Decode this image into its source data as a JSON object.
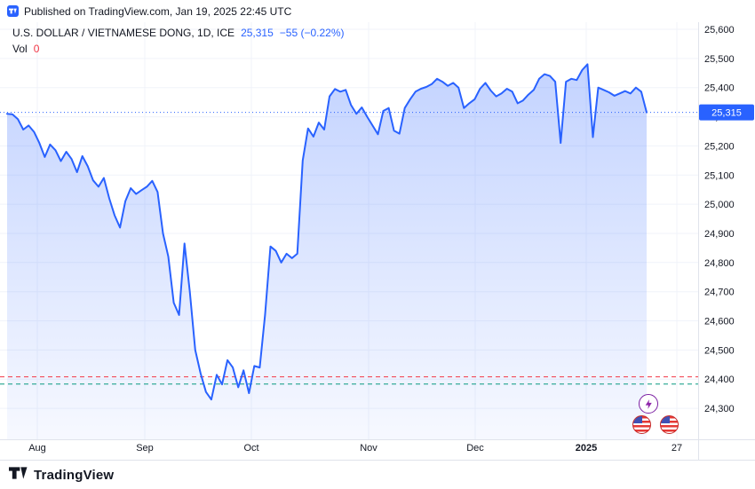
{
  "published_bar": {
    "text": "Published on TradingView.com, Jan 19, 2025 22:45 UTC"
  },
  "legend": {
    "title": "U.S. DOLLAR / VIETNAMESE DONG, 1D, ICE",
    "price": "25,315",
    "change": "−55 (−0.22%)",
    "vol_label": "Vol",
    "vol_value": "0"
  },
  "footer": {
    "brand": "TradingView"
  },
  "icons": {
    "header": "tradingview-logo-icon",
    "footer": "tradingview-logo-icon",
    "bottom_right": [
      "flash-icon",
      "us-flag-icon",
      "us-flag-icon"
    ]
  },
  "colors": {
    "accent_blue": "#2962FF",
    "negative_red": "#f23645",
    "positive_green": "#089981",
    "grid": "#f0f3fa",
    "axis_text": "#131722",
    "separator": "#e0e3eb"
  },
  "chart_data": {
    "type": "area",
    "title": "U.S. DOLLAR / VIETNAMESE DONG, 1D, ICE",
    "symbol": "USDVND",
    "interval": "1D",
    "exchange": "ICE",
    "last_price": 25315,
    "change": -55,
    "change_pct": -0.22,
    "grid": true,
    "ylim": [
      24200,
      25650
    ],
    "y_ticks": [
      25600,
      25500,
      25400,
      25300,
      25200,
      25100,
      25000,
      24900,
      24800,
      24700,
      24600,
      24500,
      24400,
      24300
    ],
    "x_ticks": [
      {
        "label": "Aug",
        "i": 5.62
      },
      {
        "label": "Sep",
        "i": 25.62
      },
      {
        "label": "Oct",
        "i": 45.45
      },
      {
        "label": "Nov",
        "i": 67.27
      },
      {
        "label": "Dec",
        "i": 87.1
      },
      {
        "label": "2025",
        "i": 107.76,
        "bold": true
      },
      {
        "label": "27",
        "i": 124.62
      }
    ],
    "levels": {
      "current": 25315,
      "red": 24408,
      "green": 24383
    },
    "values": [
      25310,
      25308,
      25292,
      25256,
      25270,
      25248,
      25210,
      25162,
      25205,
      25185,
      25148,
      25180,
      25155,
      25110,
      25165,
      25130,
      25082,
      25060,
      25090,
      25020,
      24962,
      24920,
      25010,
      25055,
      25035,
      25048,
      25060,
      25080,
      25042,
      24900,
      24820,
      24662,
      24620,
      24865,
      24700,
      24500,
      24420,
      24356,
      24330,
      24415,
      24382,
      24465,
      24440,
      24372,
      24430,
      24352,
      24445,
      24440,
      24620,
      24855,
      24840,
      24800,
      24830,
      24815,
      24830,
      25150,
      25260,
      25232,
      25280,
      25256,
      25370,
      25395,
      25386,
      25392,
      25340,
      25310,
      25332,
      25300,
      25270,
      25240,
      25320,
      25330,
      25252,
      25242,
      25330,
      25360,
      25386,
      25396,
      25402,
      25412,
      25430,
      25420,
      25406,
      25416,
      25400,
      25330,
      25346,
      25360,
      25396,
      25416,
      25390,
      25370,
      25380,
      25396,
      25386,
      25346,
      25356,
      25376,
      25392,
      25430,
      25446,
      25440,
      25420,
      25210,
      25420,
      25430,
      25426,
      25460,
      25480,
      25230,
      25400,
      25392,
      25384,
      25372,
      25380,
      25388,
      25380,
      25400,
      25386,
      25315
    ]
  }
}
